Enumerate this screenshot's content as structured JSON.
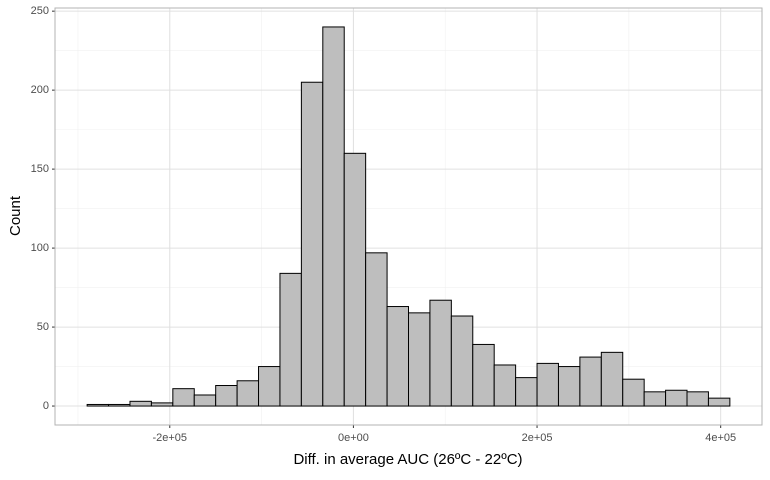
{
  "chart_data": {
    "type": "histogram",
    "xlabel": "Diff. in average AUC (26ºC - 22ºC)",
    "ylabel": "Count",
    "bins": [
      -290000,
      -266667,
      -243333,
      -220000,
      -196667,
      -173333,
      -150000,
      -126667,
      -103333,
      -80000,
      -56667,
      -33333,
      -10000,
      13333,
      36667,
      60000,
      83333,
      106667,
      130000,
      153333,
      176667,
      200000,
      223333,
      246667,
      270000,
      293333,
      316667,
      340000,
      363333,
      386667,
      410000
    ],
    "counts": [
      1,
      1,
      3,
      2,
      11,
      7,
      13,
      16,
      25,
      84,
      205,
      240,
      160,
      97,
      63,
      59,
      67,
      57,
      39,
      26,
      18,
      27,
      25,
      31,
      34,
      17,
      9,
      10,
      9,
      5
    ],
    "color": "#bebebe",
    "edgecolor": "#000000",
    "xlim": [
      -325000,
      445000
    ],
    "ylim": [
      -12,
      252
    ],
    "xticks": [
      {
        "value": -200000,
        "label": "-2e+05"
      },
      {
        "value": 0,
        "label": "0e+00"
      },
      {
        "value": 200000,
        "label": "2e+05"
      },
      {
        "value": 400000,
        "label": "4e+05"
      }
    ],
    "yticks": [
      0,
      50,
      100,
      150,
      200,
      250
    ],
    "xminor": [
      -300000,
      -100000,
      100000,
      300000
    ],
    "yminor": [
      25,
      75,
      125,
      175,
      225
    ],
    "grid": true
  }
}
